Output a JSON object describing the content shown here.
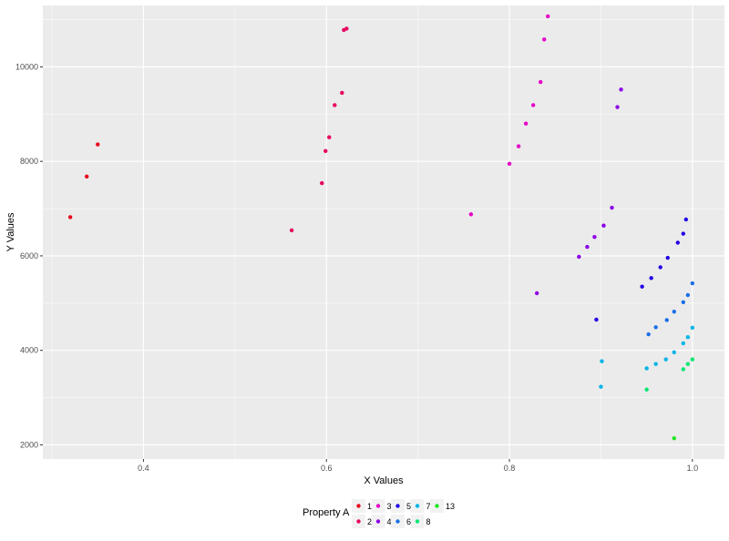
{
  "chart_data": {
    "type": "scatter",
    "title": "",
    "xlabel": "X Values",
    "ylabel": "Y Values",
    "xlim": [
      0.29,
      1.035
    ],
    "ylim": [
      1700,
      11300
    ],
    "x_ticks": [
      {
        "value": 0.4,
        "label": "0.4"
      },
      {
        "value": 0.6,
        "label": "0.6"
      },
      {
        "value": 0.8,
        "label": "0.8"
      },
      {
        "value": 1.0,
        "label": "1.0"
      }
    ],
    "y_ticks": [
      {
        "value": 2000,
        "label": "2000"
      },
      {
        "value": 4000,
        "label": "4000"
      },
      {
        "value": 6000,
        "label": "6000"
      },
      {
        "value": 8000,
        "label": "8000"
      },
      {
        "value": 10000,
        "label": "10000"
      }
    ],
    "grid": true,
    "legend": {
      "title": "Property A",
      "position": "bottom"
    },
    "series": [
      {
        "name": "1",
        "color": "#e6001a",
        "points": [
          [
            0.32,
            6820
          ],
          [
            0.338,
            7680
          ],
          [
            0.35,
            8360
          ]
        ]
      },
      {
        "name": "2",
        "color": "#e6005c",
        "points": [
          [
            0.562,
            6540
          ],
          [
            0.595,
            7540
          ],
          [
            0.599,
            8220
          ],
          [
            0.603,
            8510
          ],
          [
            0.609,
            9190
          ],
          [
            0.617,
            9450
          ],
          [
            0.619,
            10780
          ],
          [
            0.622,
            10810
          ]
        ]
      },
      {
        "name": "3",
        "color": "#e600c8",
        "points": [
          [
            0.758,
            6880
          ],
          [
            0.8,
            7950
          ],
          [
            0.81,
            8320
          ],
          [
            0.818,
            8800
          ],
          [
            0.826,
            9190
          ],
          [
            0.834,
            9680
          ],
          [
            0.838,
            10580
          ],
          [
            0.842,
            11070
          ]
        ]
      },
      {
        "name": "4",
        "color": "#8c00e6",
        "points": [
          [
            0.83,
            5210
          ],
          [
            0.876,
            5980
          ],
          [
            0.885,
            6190
          ],
          [
            0.893,
            6400
          ],
          [
            0.903,
            6640
          ],
          [
            0.912,
            7020
          ],
          [
            0.918,
            9150
          ],
          [
            0.922,
            9520
          ]
        ]
      },
      {
        "name": "5",
        "color": "#2200e6",
        "points": [
          [
            0.895,
            4650
          ],
          [
            0.945,
            5350
          ],
          [
            0.955,
            5530
          ],
          [
            0.965,
            5760
          ],
          [
            0.973,
            5960
          ],
          [
            0.984,
            6280
          ],
          [
            0.99,
            6470
          ],
          [
            0.993,
            6770
          ]
        ]
      },
      {
        "name": "6",
        "color": "#1a6ee6",
        "points": [
          [
            0.952,
            4340
          ],
          [
            0.96,
            4490
          ],
          [
            0.972,
            4640
          ],
          [
            0.98,
            4820
          ],
          [
            0.99,
            5020
          ],
          [
            0.995,
            5170
          ],
          [
            1.0,
            5420
          ]
        ]
      },
      {
        "name": "7",
        "color": "#00b4e6",
        "points": [
          [
            0.9,
            3230
          ],
          [
            0.901,
            3770
          ],
          [
            0.95,
            3620
          ],
          [
            0.96,
            3710
          ],
          [
            0.971,
            3810
          ],
          [
            0.98,
            3960
          ],
          [
            0.99,
            4150
          ],
          [
            0.995,
            4280
          ],
          [
            1.0,
            4480
          ]
        ]
      },
      {
        "name": "8",
        "color": "#00e670",
        "points": [
          [
            0.95,
            3170
          ],
          [
            0.99,
            3600
          ],
          [
            0.995,
            3710
          ],
          [
            1.0,
            3810
          ]
        ]
      },
      {
        "name": "13",
        "color": "#1ee61e",
        "points": [
          [
            0.98,
            2140
          ]
        ]
      }
    ]
  }
}
